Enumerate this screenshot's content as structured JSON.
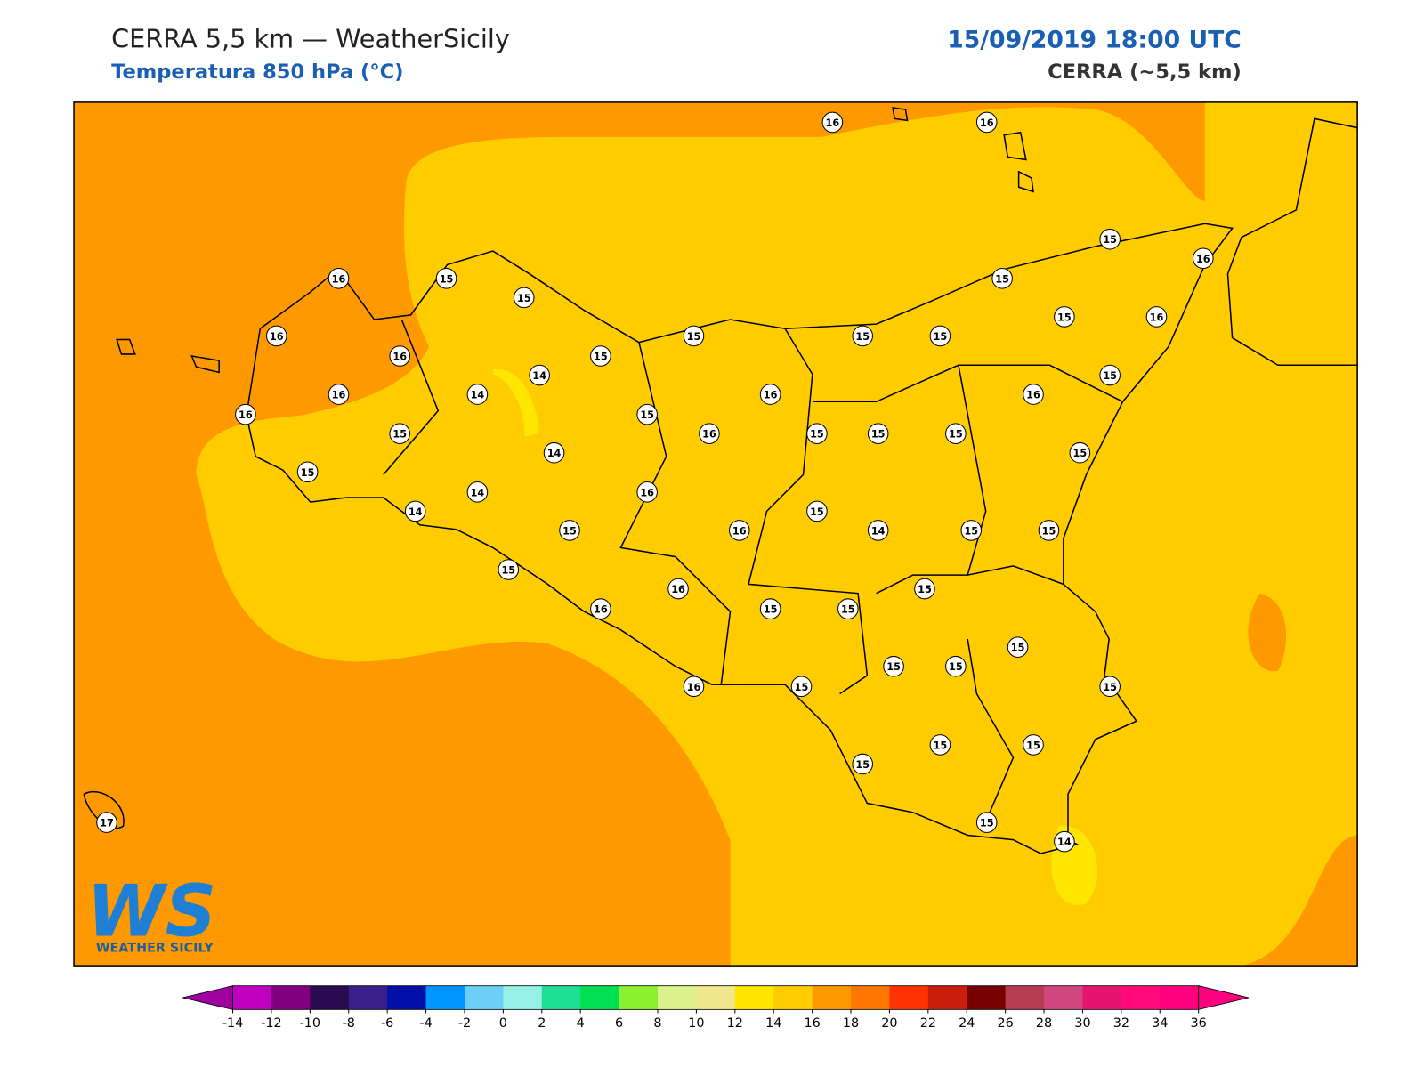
{
  "header": {
    "title": "CERRA 5,5 km — WeatherSicily",
    "subtitle": "Temperatura 850 hPa (°C)",
    "datetime": "15/09/2019 18:00 UTC",
    "model": "CERRA (~5,5 km)"
  },
  "map": {
    "stations": [
      16,
      16,
      15,
      16,
      16,
      15,
      15,
      15,
      16,
      15,
      15,
      15,
      15,
      16,
      16,
      15,
      14,
      15,
      16,
      14,
      16,
      16,
      16,
      15,
      15,
      16,
      15,
      15,
      15,
      14,
      15,
      15,
      14,
      16,
      14,
      15,
      15,
      16,
      14,
      15,
      15,
      15,
      15,
      16,
      16,
      15,
      15,
      15,
      15,
      15,
      16,
      15,
      15,
      15,
      15,
      15,
      15,
      14,
      17
    ]
  },
  "logo": {
    "mark": "WS",
    "text": "Weather Sicily"
  },
  "colorbar": {
    "ticks": [
      -14,
      -12,
      -10,
      -8,
      -6,
      -4,
      -2,
      0,
      2,
      4,
      6,
      8,
      10,
      12,
      14,
      16,
      18,
      20,
      22,
      24,
      26,
      28,
      30,
      32,
      34,
      36
    ],
    "colors": [
      "#c000c0",
      "#800080",
      "#2a0a50",
      "#3a1f8a",
      "#0010a8",
      "#0096ff",
      "#6ccff6",
      "#96f0e6",
      "#1ee094",
      "#00e050",
      "#8cf032",
      "#dcf08c",
      "#f0e68c",
      "#ffe600",
      "#ffcc00",
      "#ff9900",
      "#ff7700",
      "#ff3300",
      "#c81e0a",
      "#780000",
      "#b43c50",
      "#d24680",
      "#e6146e",
      "#ff0a78",
      "#ff007f"
    ],
    "under": "#a000a0",
    "over": "#ff007f"
  }
}
